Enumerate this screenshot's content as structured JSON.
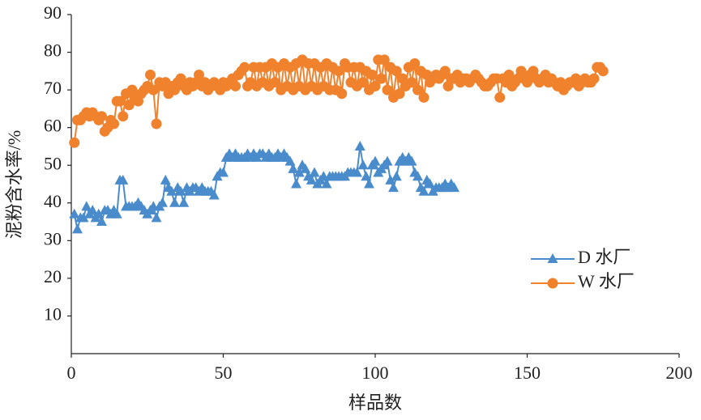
{
  "chart_data": {
    "type": "line",
    "x_label": "样品数",
    "y_label": "泥粉含水率/%",
    "xlim": [
      0,
      200
    ],
    "xticks": [
      0,
      50,
      100,
      150,
      200
    ],
    "ylim": [
      0,
      90
    ],
    "yticks": [
      10,
      20,
      30,
      40,
      50,
      60,
      70,
      80,
      90
    ],
    "legend": "lower right",
    "series": [
      {
        "name": "D 水厂",
        "color": "#4a8ccb",
        "marker": "triangle",
        "x": [
          1,
          2,
          3,
          4,
          5,
          6,
          7,
          8,
          9,
          10,
          11,
          12,
          13,
          14,
          15,
          16,
          17,
          18,
          19,
          20,
          21,
          22,
          23,
          24,
          25,
          26,
          27,
          28,
          29,
          30,
          31,
          32,
          33,
          34,
          35,
          36,
          37,
          38,
          39,
          40,
          41,
          42,
          43,
          44,
          45,
          46,
          47,
          48,
          49,
          50,
          51,
          52,
          53,
          54,
          55,
          56,
          57,
          58,
          59,
          60,
          61,
          62,
          63,
          64,
          65,
          66,
          67,
          68,
          69,
          70,
          71,
          72,
          73,
          74,
          75,
          76,
          77,
          78,
          79,
          80,
          81,
          82,
          83,
          84,
          85,
          86,
          87,
          88,
          89,
          90,
          91,
          92,
          93,
          94,
          95,
          96,
          97,
          98,
          99,
          100,
          101,
          102,
          103,
          104,
          105,
          106,
          107,
          108,
          109,
          110,
          111,
          112,
          113,
          114,
          115,
          116,
          117,
          118,
          119,
          120,
          121,
          122,
          123,
          124,
          125,
          126
        ],
        "values": [
          37,
          33,
          36,
          36,
          39,
          37,
          38,
          36,
          37,
          35,
          38,
          38,
          37,
          38,
          37,
          46,
          46,
          39,
          39,
          39,
          39,
          40,
          39,
          38,
          37,
          38,
          39,
          36,
          39,
          40,
          46,
          44,
          43,
          40,
          44,
          43,
          40,
          44,
          43,
          44,
          44,
          43,
          44,
          43,
          43,
          43,
          42,
          47,
          48,
          48,
          52,
          53,
          52,
          53,
          52,
          52,
          52,
          53,
          52,
          53,
          52,
          53,
          53,
          52,
          53,
          52,
          52,
          53,
          52,
          53,
          52,
          51,
          49,
          45,
          48,
          50,
          49,
          47,
          46,
          48,
          45,
          46,
          47,
          45,
          47,
          47,
          47,
          47,
          47,
          47,
          48,
          48,
          48,
          48,
          55,
          50,
          47,
          45,
          50,
          51,
          48,
          49,
          50,
          51,
          46,
          44,
          47,
          51,
          52,
          51,
          52,
          51,
          48,
          47,
          44,
          43,
          46,
          45,
          43,
          44,
          44,
          44,
          45,
          44,
          45,
          44
        ]
      },
      {
        "name": "W 水厂",
        "color": "#f0822e",
        "marker": "circle",
        "x": [
          1,
          2,
          3,
          4,
          5,
          6,
          7,
          8,
          9,
          10,
          11,
          12,
          13,
          14,
          15,
          16,
          17,
          18,
          19,
          20,
          21,
          22,
          23,
          24,
          25,
          26,
          27,
          28,
          29,
          30,
          31,
          32,
          33,
          34,
          35,
          36,
          37,
          38,
          39,
          40,
          41,
          42,
          43,
          44,
          45,
          46,
          47,
          48,
          49,
          50,
          51,
          52,
          53,
          54,
          55,
          56,
          57,
          58,
          59,
          60,
          61,
          62,
          63,
          64,
          65,
          66,
          67,
          68,
          69,
          70,
          71,
          72,
          73,
          74,
          75,
          76,
          77,
          78,
          79,
          80,
          81,
          82,
          83,
          84,
          85,
          86,
          87,
          88,
          89,
          90,
          91,
          92,
          93,
          94,
          95,
          96,
          97,
          98,
          99,
          100,
          101,
          102,
          103,
          104,
          105,
          106,
          107,
          108,
          109,
          110,
          111,
          112,
          113,
          114,
          115,
          116,
          117,
          118,
          119,
          120,
          121,
          122,
          123,
          124,
          125,
          126,
          127,
          128,
          129,
          130,
          131,
          132,
          133,
          134,
          135,
          136,
          137,
          138,
          139,
          140,
          141,
          142,
          143,
          144,
          145,
          146,
          147,
          148,
          149,
          150,
          151,
          152,
          153,
          154,
          155,
          156,
          157,
          158,
          159,
          160,
          161,
          162,
          163,
          164,
          165,
          166,
          167,
          168,
          169,
          170,
          171,
          172,
          173,
          174,
          175
        ],
        "values": [
          56,
          62,
          62,
          63,
          64,
          63,
          64,
          63,
          62,
          63,
          59,
          60,
          62,
          61,
          67,
          67,
          63,
          69,
          66,
          70,
          68,
          67,
          69,
          70,
          71,
          74,
          70,
          61,
          72,
          71,
          72,
          69,
          71,
          70,
          72,
          73,
          71,
          70,
          72,
          71,
          72,
          74,
          71,
          72,
          70,
          71,
          72,
          71,
          70,
          72,
          71,
          72,
          73,
          71,
          74,
          75,
          76,
          71,
          72,
          76,
          71,
          76,
          72,
          76,
          71,
          77,
          72,
          76,
          70,
          77,
          71,
          76,
          70,
          77,
          71,
          78,
          70,
          77,
          71,
          77,
          70,
          76,
          71,
          77,
          70,
          76,
          70,
          75,
          69,
          77,
          76,
          72,
          76,
          71,
          76,
          72,
          75,
          70,
          74,
          71,
          78,
          73,
          78,
          70,
          76,
          68,
          75,
          69,
          73,
          71,
          76,
          72,
          77,
          70,
          75,
          68,
          74,
          72,
          73,
          74,
          73,
          74,
          75,
          71,
          73,
          73,
          74,
          72,
          73,
          73,
          72,
          73,
          74,
          73,
          72,
          71,
          71,
          72,
          73,
          73,
          68,
          73,
          72,
          74,
          71,
          72,
          73,
          75,
          73,
          72,
          74,
          75,
          73,
          72,
          73,
          74,
          72,
          73,
          72,
          71,
          72,
          70,
          71,
          72,
          72,
          73,
          71,
          72,
          73,
          72,
          72,
          73,
          76,
          76,
          75
        ]
      }
    ]
  }
}
